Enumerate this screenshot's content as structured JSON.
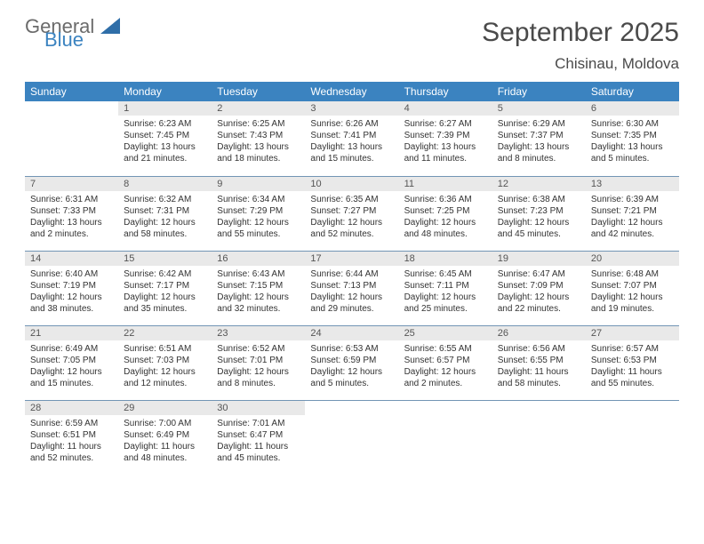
{
  "brand": {
    "part1": "General",
    "part2": "Blue"
  },
  "title": {
    "month": "September 2025",
    "location": "Chisinau, Moldova"
  },
  "colors": {
    "header_bg": "#3b83c0",
    "daynum_bg": "#e9e9e9",
    "rule": "#7295b5"
  },
  "weekdays": [
    "Sunday",
    "Monday",
    "Tuesday",
    "Wednesday",
    "Thursday",
    "Friday",
    "Saturday"
  ],
  "weeks": [
    [
      null,
      {
        "n": "1",
        "sr": "Sunrise: 6:23 AM",
        "ss": "Sunset: 7:45 PM",
        "d1": "Daylight: 13 hours",
        "d2": "and 21 minutes."
      },
      {
        "n": "2",
        "sr": "Sunrise: 6:25 AM",
        "ss": "Sunset: 7:43 PM",
        "d1": "Daylight: 13 hours",
        "d2": "and 18 minutes."
      },
      {
        "n": "3",
        "sr": "Sunrise: 6:26 AM",
        "ss": "Sunset: 7:41 PM",
        "d1": "Daylight: 13 hours",
        "d2": "and 15 minutes."
      },
      {
        "n": "4",
        "sr": "Sunrise: 6:27 AM",
        "ss": "Sunset: 7:39 PM",
        "d1": "Daylight: 13 hours",
        "d2": "and 11 minutes."
      },
      {
        "n": "5",
        "sr": "Sunrise: 6:29 AM",
        "ss": "Sunset: 7:37 PM",
        "d1": "Daylight: 13 hours",
        "d2": "and 8 minutes."
      },
      {
        "n": "6",
        "sr": "Sunrise: 6:30 AM",
        "ss": "Sunset: 7:35 PM",
        "d1": "Daylight: 13 hours",
        "d2": "and 5 minutes."
      }
    ],
    [
      {
        "n": "7",
        "sr": "Sunrise: 6:31 AM",
        "ss": "Sunset: 7:33 PM",
        "d1": "Daylight: 13 hours",
        "d2": "and 2 minutes."
      },
      {
        "n": "8",
        "sr": "Sunrise: 6:32 AM",
        "ss": "Sunset: 7:31 PM",
        "d1": "Daylight: 12 hours",
        "d2": "and 58 minutes."
      },
      {
        "n": "9",
        "sr": "Sunrise: 6:34 AM",
        "ss": "Sunset: 7:29 PM",
        "d1": "Daylight: 12 hours",
        "d2": "and 55 minutes."
      },
      {
        "n": "10",
        "sr": "Sunrise: 6:35 AM",
        "ss": "Sunset: 7:27 PM",
        "d1": "Daylight: 12 hours",
        "d2": "and 52 minutes."
      },
      {
        "n": "11",
        "sr": "Sunrise: 6:36 AM",
        "ss": "Sunset: 7:25 PM",
        "d1": "Daylight: 12 hours",
        "d2": "and 48 minutes."
      },
      {
        "n": "12",
        "sr": "Sunrise: 6:38 AM",
        "ss": "Sunset: 7:23 PM",
        "d1": "Daylight: 12 hours",
        "d2": "and 45 minutes."
      },
      {
        "n": "13",
        "sr": "Sunrise: 6:39 AM",
        "ss": "Sunset: 7:21 PM",
        "d1": "Daylight: 12 hours",
        "d2": "and 42 minutes."
      }
    ],
    [
      {
        "n": "14",
        "sr": "Sunrise: 6:40 AM",
        "ss": "Sunset: 7:19 PM",
        "d1": "Daylight: 12 hours",
        "d2": "and 38 minutes."
      },
      {
        "n": "15",
        "sr": "Sunrise: 6:42 AM",
        "ss": "Sunset: 7:17 PM",
        "d1": "Daylight: 12 hours",
        "d2": "and 35 minutes."
      },
      {
        "n": "16",
        "sr": "Sunrise: 6:43 AM",
        "ss": "Sunset: 7:15 PM",
        "d1": "Daylight: 12 hours",
        "d2": "and 32 minutes."
      },
      {
        "n": "17",
        "sr": "Sunrise: 6:44 AM",
        "ss": "Sunset: 7:13 PM",
        "d1": "Daylight: 12 hours",
        "d2": "and 29 minutes."
      },
      {
        "n": "18",
        "sr": "Sunrise: 6:45 AM",
        "ss": "Sunset: 7:11 PM",
        "d1": "Daylight: 12 hours",
        "d2": "and 25 minutes."
      },
      {
        "n": "19",
        "sr": "Sunrise: 6:47 AM",
        "ss": "Sunset: 7:09 PM",
        "d1": "Daylight: 12 hours",
        "d2": "and 22 minutes."
      },
      {
        "n": "20",
        "sr": "Sunrise: 6:48 AM",
        "ss": "Sunset: 7:07 PM",
        "d1": "Daylight: 12 hours",
        "d2": "and 19 minutes."
      }
    ],
    [
      {
        "n": "21",
        "sr": "Sunrise: 6:49 AM",
        "ss": "Sunset: 7:05 PM",
        "d1": "Daylight: 12 hours",
        "d2": "and 15 minutes."
      },
      {
        "n": "22",
        "sr": "Sunrise: 6:51 AM",
        "ss": "Sunset: 7:03 PM",
        "d1": "Daylight: 12 hours",
        "d2": "and 12 minutes."
      },
      {
        "n": "23",
        "sr": "Sunrise: 6:52 AM",
        "ss": "Sunset: 7:01 PM",
        "d1": "Daylight: 12 hours",
        "d2": "and 8 minutes."
      },
      {
        "n": "24",
        "sr": "Sunrise: 6:53 AM",
        "ss": "Sunset: 6:59 PM",
        "d1": "Daylight: 12 hours",
        "d2": "and 5 minutes."
      },
      {
        "n": "25",
        "sr": "Sunrise: 6:55 AM",
        "ss": "Sunset: 6:57 PM",
        "d1": "Daylight: 12 hours",
        "d2": "and 2 minutes."
      },
      {
        "n": "26",
        "sr": "Sunrise: 6:56 AM",
        "ss": "Sunset: 6:55 PM",
        "d1": "Daylight: 11 hours",
        "d2": "and 58 minutes."
      },
      {
        "n": "27",
        "sr": "Sunrise: 6:57 AM",
        "ss": "Sunset: 6:53 PM",
        "d1": "Daylight: 11 hours",
        "d2": "and 55 minutes."
      }
    ],
    [
      {
        "n": "28",
        "sr": "Sunrise: 6:59 AM",
        "ss": "Sunset: 6:51 PM",
        "d1": "Daylight: 11 hours",
        "d2": "and 52 minutes."
      },
      {
        "n": "29",
        "sr": "Sunrise: 7:00 AM",
        "ss": "Sunset: 6:49 PM",
        "d1": "Daylight: 11 hours",
        "d2": "and 48 minutes."
      },
      {
        "n": "30",
        "sr": "Sunrise: 7:01 AM",
        "ss": "Sunset: 6:47 PM",
        "d1": "Daylight: 11 hours",
        "d2": "and 45 minutes."
      },
      null,
      null,
      null,
      null
    ]
  ]
}
